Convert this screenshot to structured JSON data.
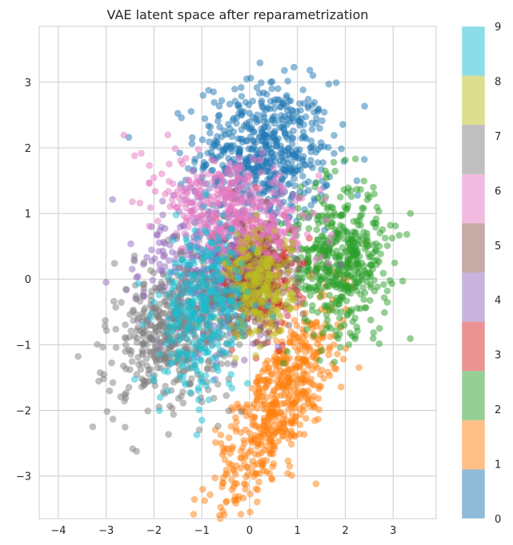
{
  "chart_data": {
    "type": "scatter",
    "title": "VAE latent space after reparametrization",
    "xlabel": "",
    "ylabel": "",
    "xlim": [
      -4.4,
      3.9
    ],
    "ylim": [
      -3.65,
      3.85
    ],
    "xticks": [
      -4,
      -3,
      -2,
      -1,
      0,
      1,
      2,
      3
    ],
    "yticks": [
      -3,
      -2,
      -1,
      0,
      1,
      2,
      3
    ],
    "xtick_labels": [
      "−4",
      "−3",
      "−2",
      "−1",
      "0",
      "1",
      "2",
      "3"
    ],
    "ytick_labels": [
      "−3",
      "−2",
      "−1",
      "0",
      "1",
      "2",
      "3"
    ],
    "grid": true,
    "marker_alpha": 0.5,
    "colorbar": {
      "label": "",
      "range": [
        0,
        9
      ],
      "ticks": [
        "0",
        "1",
        "2",
        "3",
        "4",
        "5",
        "6",
        "7",
        "8",
        "9"
      ],
      "colors": [
        "#1f77b4",
        "#ff7f0e",
        "#2ca02c",
        "#d62728",
        "#9467bd",
        "#8c564b",
        "#e377c2",
        "#7f7f7f",
        "#bcbd22",
        "#17becf"
      ]
    },
    "series": [
      {
        "class": 0,
        "color": "#1f77b4",
        "count": 600,
        "center": [
          0.3,
          1.9
        ],
        "spread": [
          0.7,
          0.55
        ],
        "rotation": 0.0
      },
      {
        "class": 1,
        "color": "#ff7f0e",
        "count": 600,
        "center": [
          0.6,
          -1.9
        ],
        "spread": [
          1.05,
          0.35
        ],
        "rotation": 0.95
      },
      {
        "class": 2,
        "color": "#2ca02c",
        "count": 500,
        "center": [
          1.9,
          0.3
        ],
        "spread": [
          0.5,
          0.55
        ],
        "rotation": 0.3
      },
      {
        "class": 3,
        "color": "#d62728",
        "count": 300,
        "center": [
          0.1,
          0.1
        ],
        "spread": [
          0.4,
          0.45
        ],
        "rotation": 0.0
      },
      {
        "class": 4,
        "color": "#9467bd",
        "count": 350,
        "center": [
          -0.9,
          0.1
        ],
        "spread": [
          0.7,
          0.55
        ],
        "rotation": -0.4
      },
      {
        "class": 5,
        "color": "#8c564b",
        "count": 300,
        "center": [
          0.1,
          0.0
        ],
        "spread": [
          0.4,
          0.4
        ],
        "rotation": 0.0
      },
      {
        "class": 6,
        "color": "#e377c2",
        "count": 450,
        "center": [
          -0.3,
          1.0
        ],
        "spread": [
          0.85,
          0.35
        ],
        "rotation": -0.25
      },
      {
        "class": 7,
        "color": "#7f7f7f",
        "count": 500,
        "center": [
          -1.6,
          -0.8
        ],
        "spread": [
          0.65,
          0.5
        ],
        "rotation": 0.5
      },
      {
        "class": 8,
        "color": "#bcbd22",
        "count": 250,
        "center": [
          0.2,
          -0.1
        ],
        "spread": [
          0.35,
          0.4
        ],
        "rotation": 0.0
      },
      {
        "class": 9,
        "color": "#17becf",
        "count": 350,
        "center": [
          -1.0,
          -0.5
        ],
        "spread": [
          0.45,
          0.65
        ],
        "rotation": -0.2
      }
    ]
  }
}
